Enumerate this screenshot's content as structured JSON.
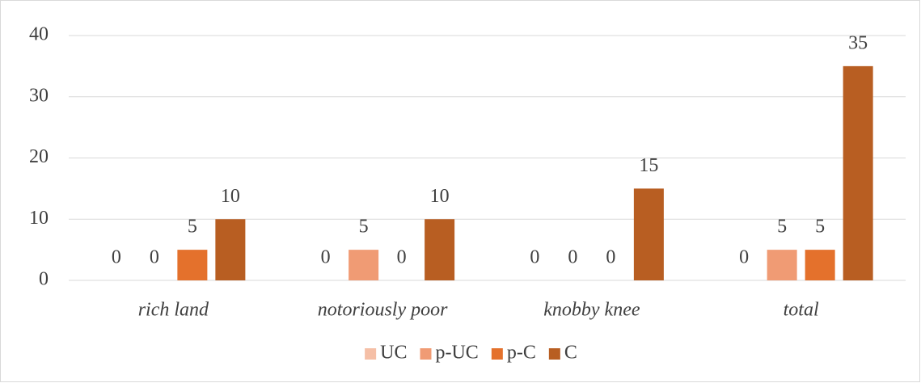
{
  "chart_data": {
    "type": "bar",
    "categories": [
      "rich land",
      "notoriously poor",
      "knobby knee",
      "total"
    ],
    "series": [
      {
        "name": "UC",
        "color": "#f5bfa6",
        "values": [
          0,
          0,
          0,
          0
        ]
      },
      {
        "name": "p-UC",
        "color": "#f09b74",
        "values": [
          0,
          5,
          0,
          5
        ]
      },
      {
        "name": "p-C",
        "color": "#e4712c",
        "values": [
          5,
          0,
          0,
          5
        ]
      },
      {
        "name": "C",
        "color": "#b85e22",
        "values": [
          10,
          10,
          15,
          35
        ]
      }
    ],
    "ylim": [
      0,
      40
    ],
    "yticks": [
      0,
      10,
      20,
      30,
      40
    ],
    "grid": true,
    "legend": "bottom"
  }
}
